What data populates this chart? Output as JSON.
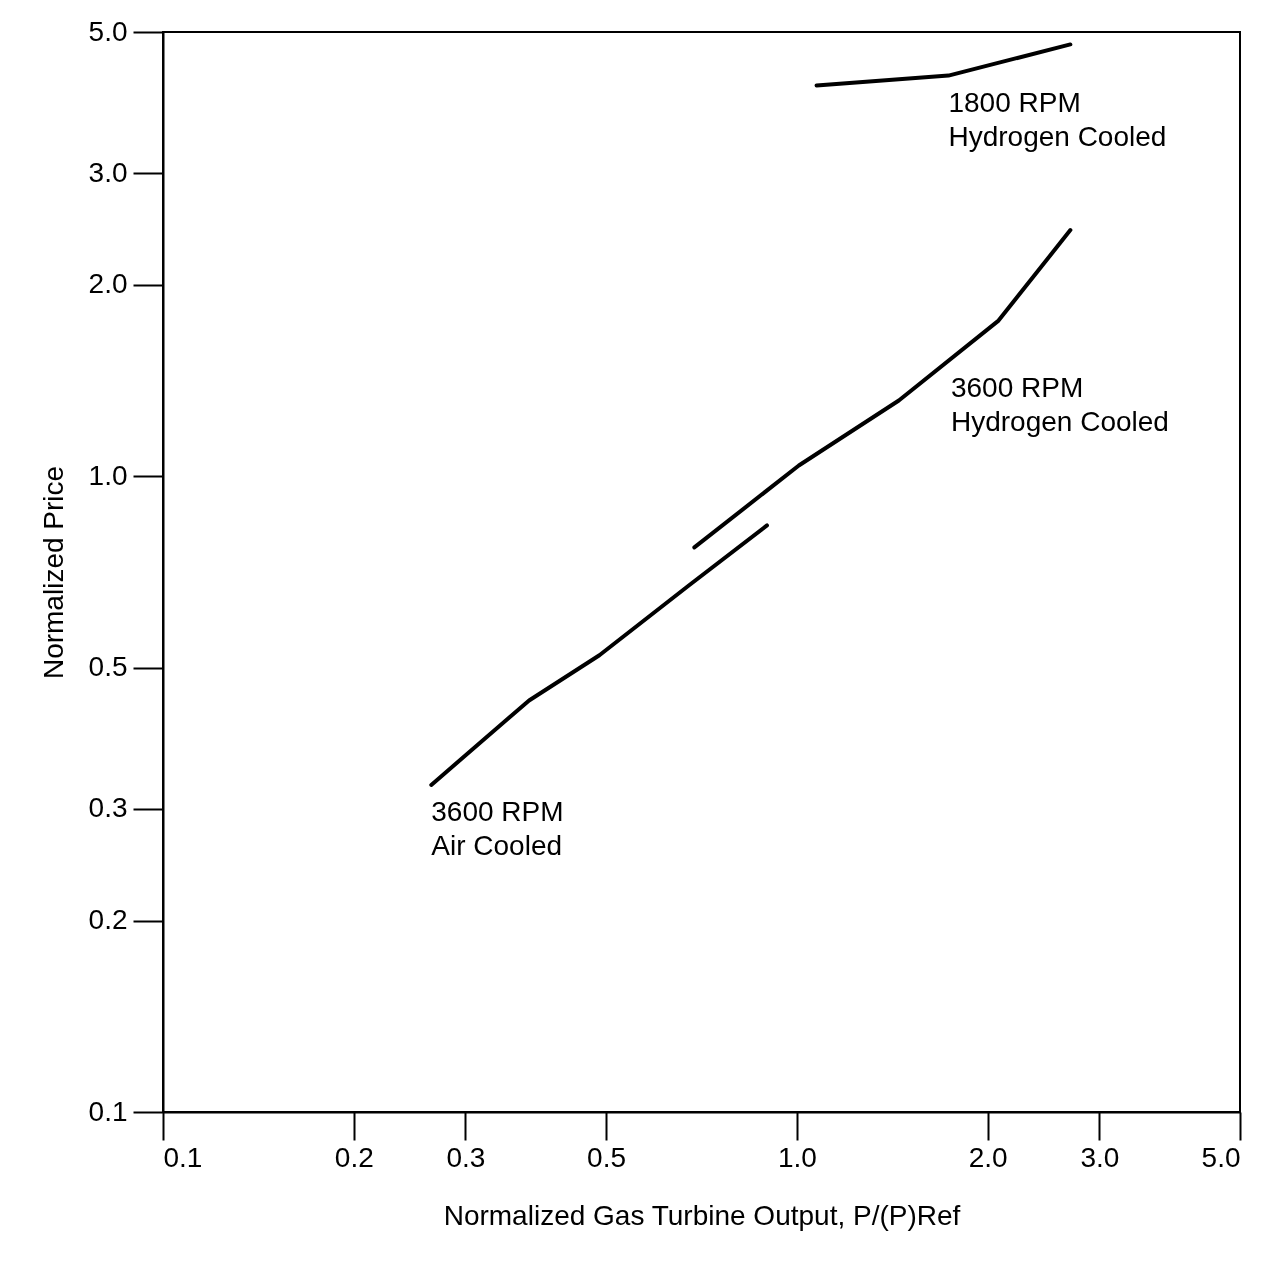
{
  "chart_data": {
    "type": "line",
    "xlabel": "Normalized Gas Turbine Output, P/(P)Ref",
    "ylabel": "Normalized Price",
    "log": "xy",
    "grid": false,
    "marker": "none",
    "line_style": "solid",
    "xlim": [
      0.1,
      5.0
    ],
    "ylim": [
      0.1,
      5.0
    ],
    "xticks": [
      {
        "value": 0.1,
        "label": "0.1"
      },
      {
        "value": 0.2,
        "label": "0.2"
      },
      {
        "value": 0.3,
        "label": "0.3"
      },
      {
        "value": 0.5,
        "label": "0.5"
      },
      {
        "value": 1.0,
        "label": "1.0"
      },
      {
        "value": 2.0,
        "label": "2.0"
      },
      {
        "value": 3.0,
        "label": "3.0"
      },
      {
        "value": 5.0,
        "label": "5.0"
      }
    ],
    "yticks": [
      {
        "value": 0.1,
        "label": "0.1"
      },
      {
        "value": 0.2,
        "label": "0.2"
      },
      {
        "value": 0.3,
        "label": "0.3"
      },
      {
        "value": 0.5,
        "label": "0.5"
      },
      {
        "value": 1.0,
        "label": "1.0"
      },
      {
        "value": 2.0,
        "label": "2.0"
      },
      {
        "value": 3.0,
        "label": "3.0"
      },
      {
        "value": 5.0,
        "label": "5.0"
      }
    ],
    "series": [
      {
        "color": "#000000",
        "x": [
          0.265,
          0.378,
          0.488,
          0.676,
          0.897
        ],
        "values": [
          0.327,
          0.444,
          0.523,
          0.674,
          0.837
        ]
      },
      {
        "color": "#000000",
        "x": [
          0.689,
          1.007,
          1.448,
          2.08,
          2.7
        ],
        "values": [
          0.773,
          1.04,
          1.316,
          1.758,
          2.44
        ]
      },
      {
        "color": "#000000",
        "x": [
          1.074,
          1.734,
          2.7
        ],
        "values": [
          4.12,
          4.27,
          4.78
        ]
      }
    ],
    "annotations": [
      {
        "text": "1800 RPM\nHydrogen Cooled",
        "x": 1.734,
        "y": 4.27
      },
      {
        "text": "3600 RPM\nHydrogen Cooled",
        "x": 1.75,
        "y": 1.52
      },
      {
        "text": "3600 RPM\nAir Cooled",
        "x": 0.265,
        "y": 0.327
      }
    ]
  }
}
